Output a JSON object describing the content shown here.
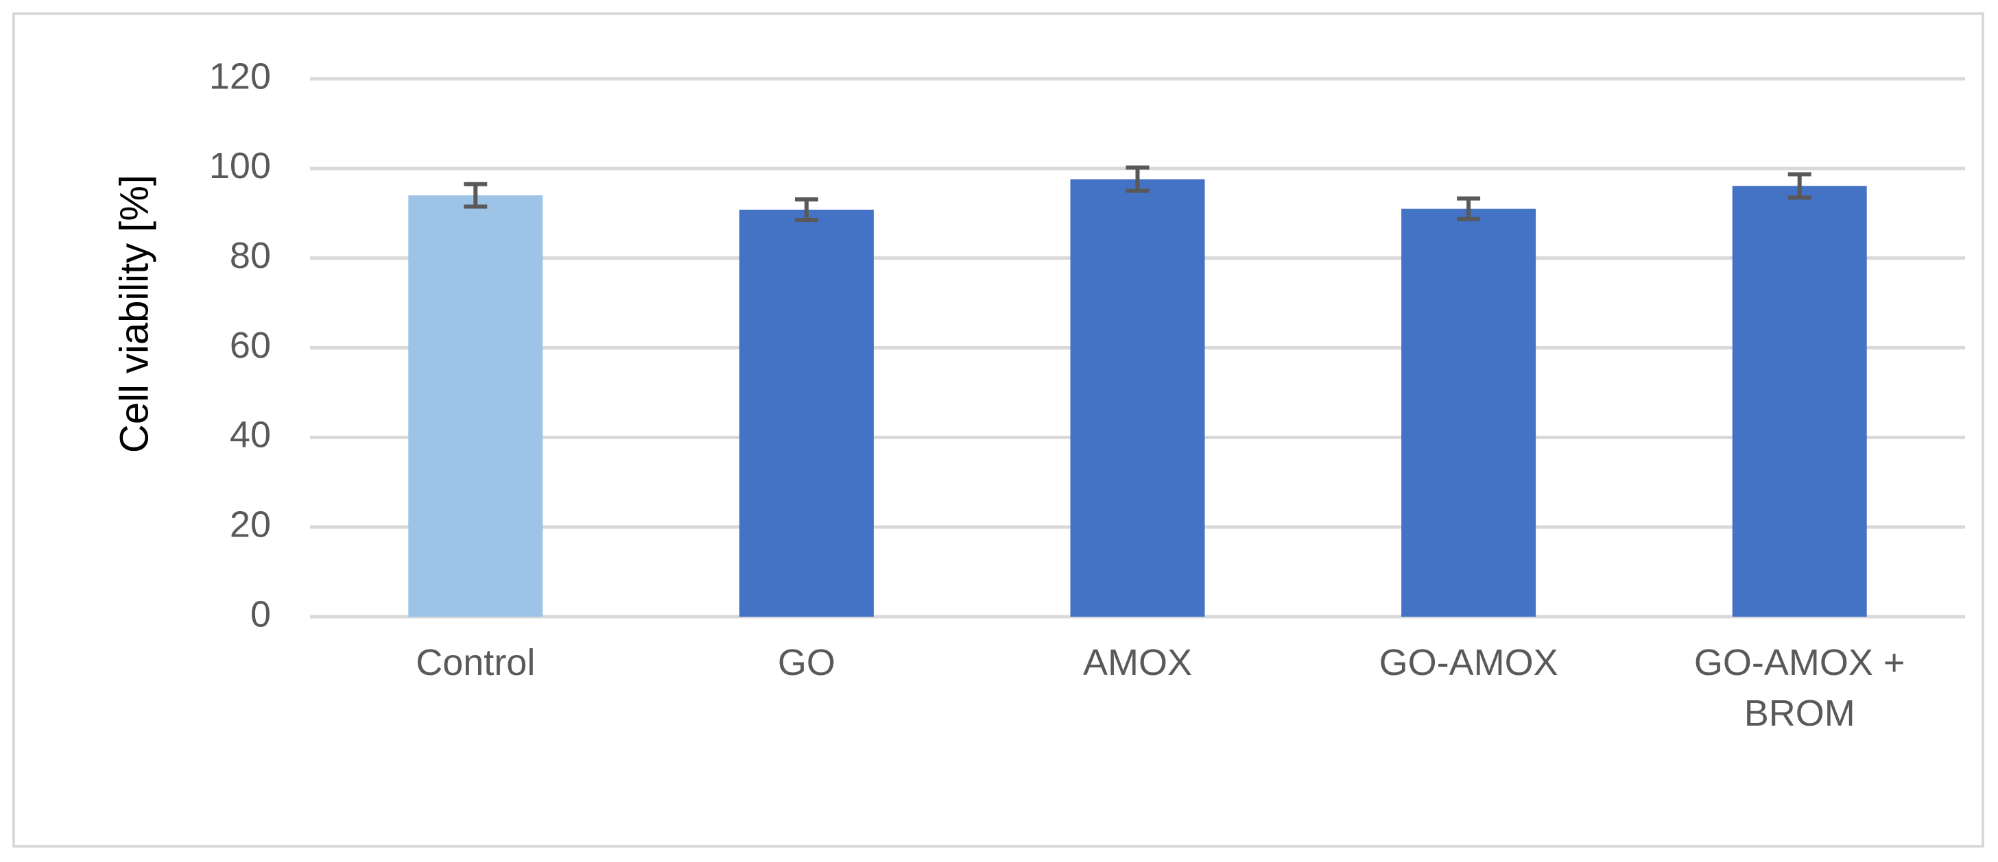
{
  "chart_data": {
    "type": "bar",
    "title": "",
    "xlabel": "",
    "ylabel": "Cell viability  [%]",
    "ylim": [
      0,
      120
    ],
    "yticks": [
      0,
      20,
      40,
      60,
      80,
      100,
      120
    ],
    "grid": true,
    "legend": "none",
    "categories": [
      [
        "Control"
      ],
      [
        "GO"
      ],
      [
        "AMOX"
      ],
      [
        "GO-AMOX"
      ],
      [
        "GO-AMOX +",
        "BROM"
      ]
    ],
    "values": [
      94.0,
      90.8,
      97.6,
      91.0,
      96.1
    ],
    "error": [
      2.5,
      2.3,
      2.6,
      2.3,
      2.6
    ],
    "colors": [
      "#9dc3e6",
      "#4472c4",
      "#4472c4",
      "#4472c4",
      "#4472c4"
    ],
    "gridline_color": "#d9d9d9",
    "errorbar_color": "#595959"
  }
}
